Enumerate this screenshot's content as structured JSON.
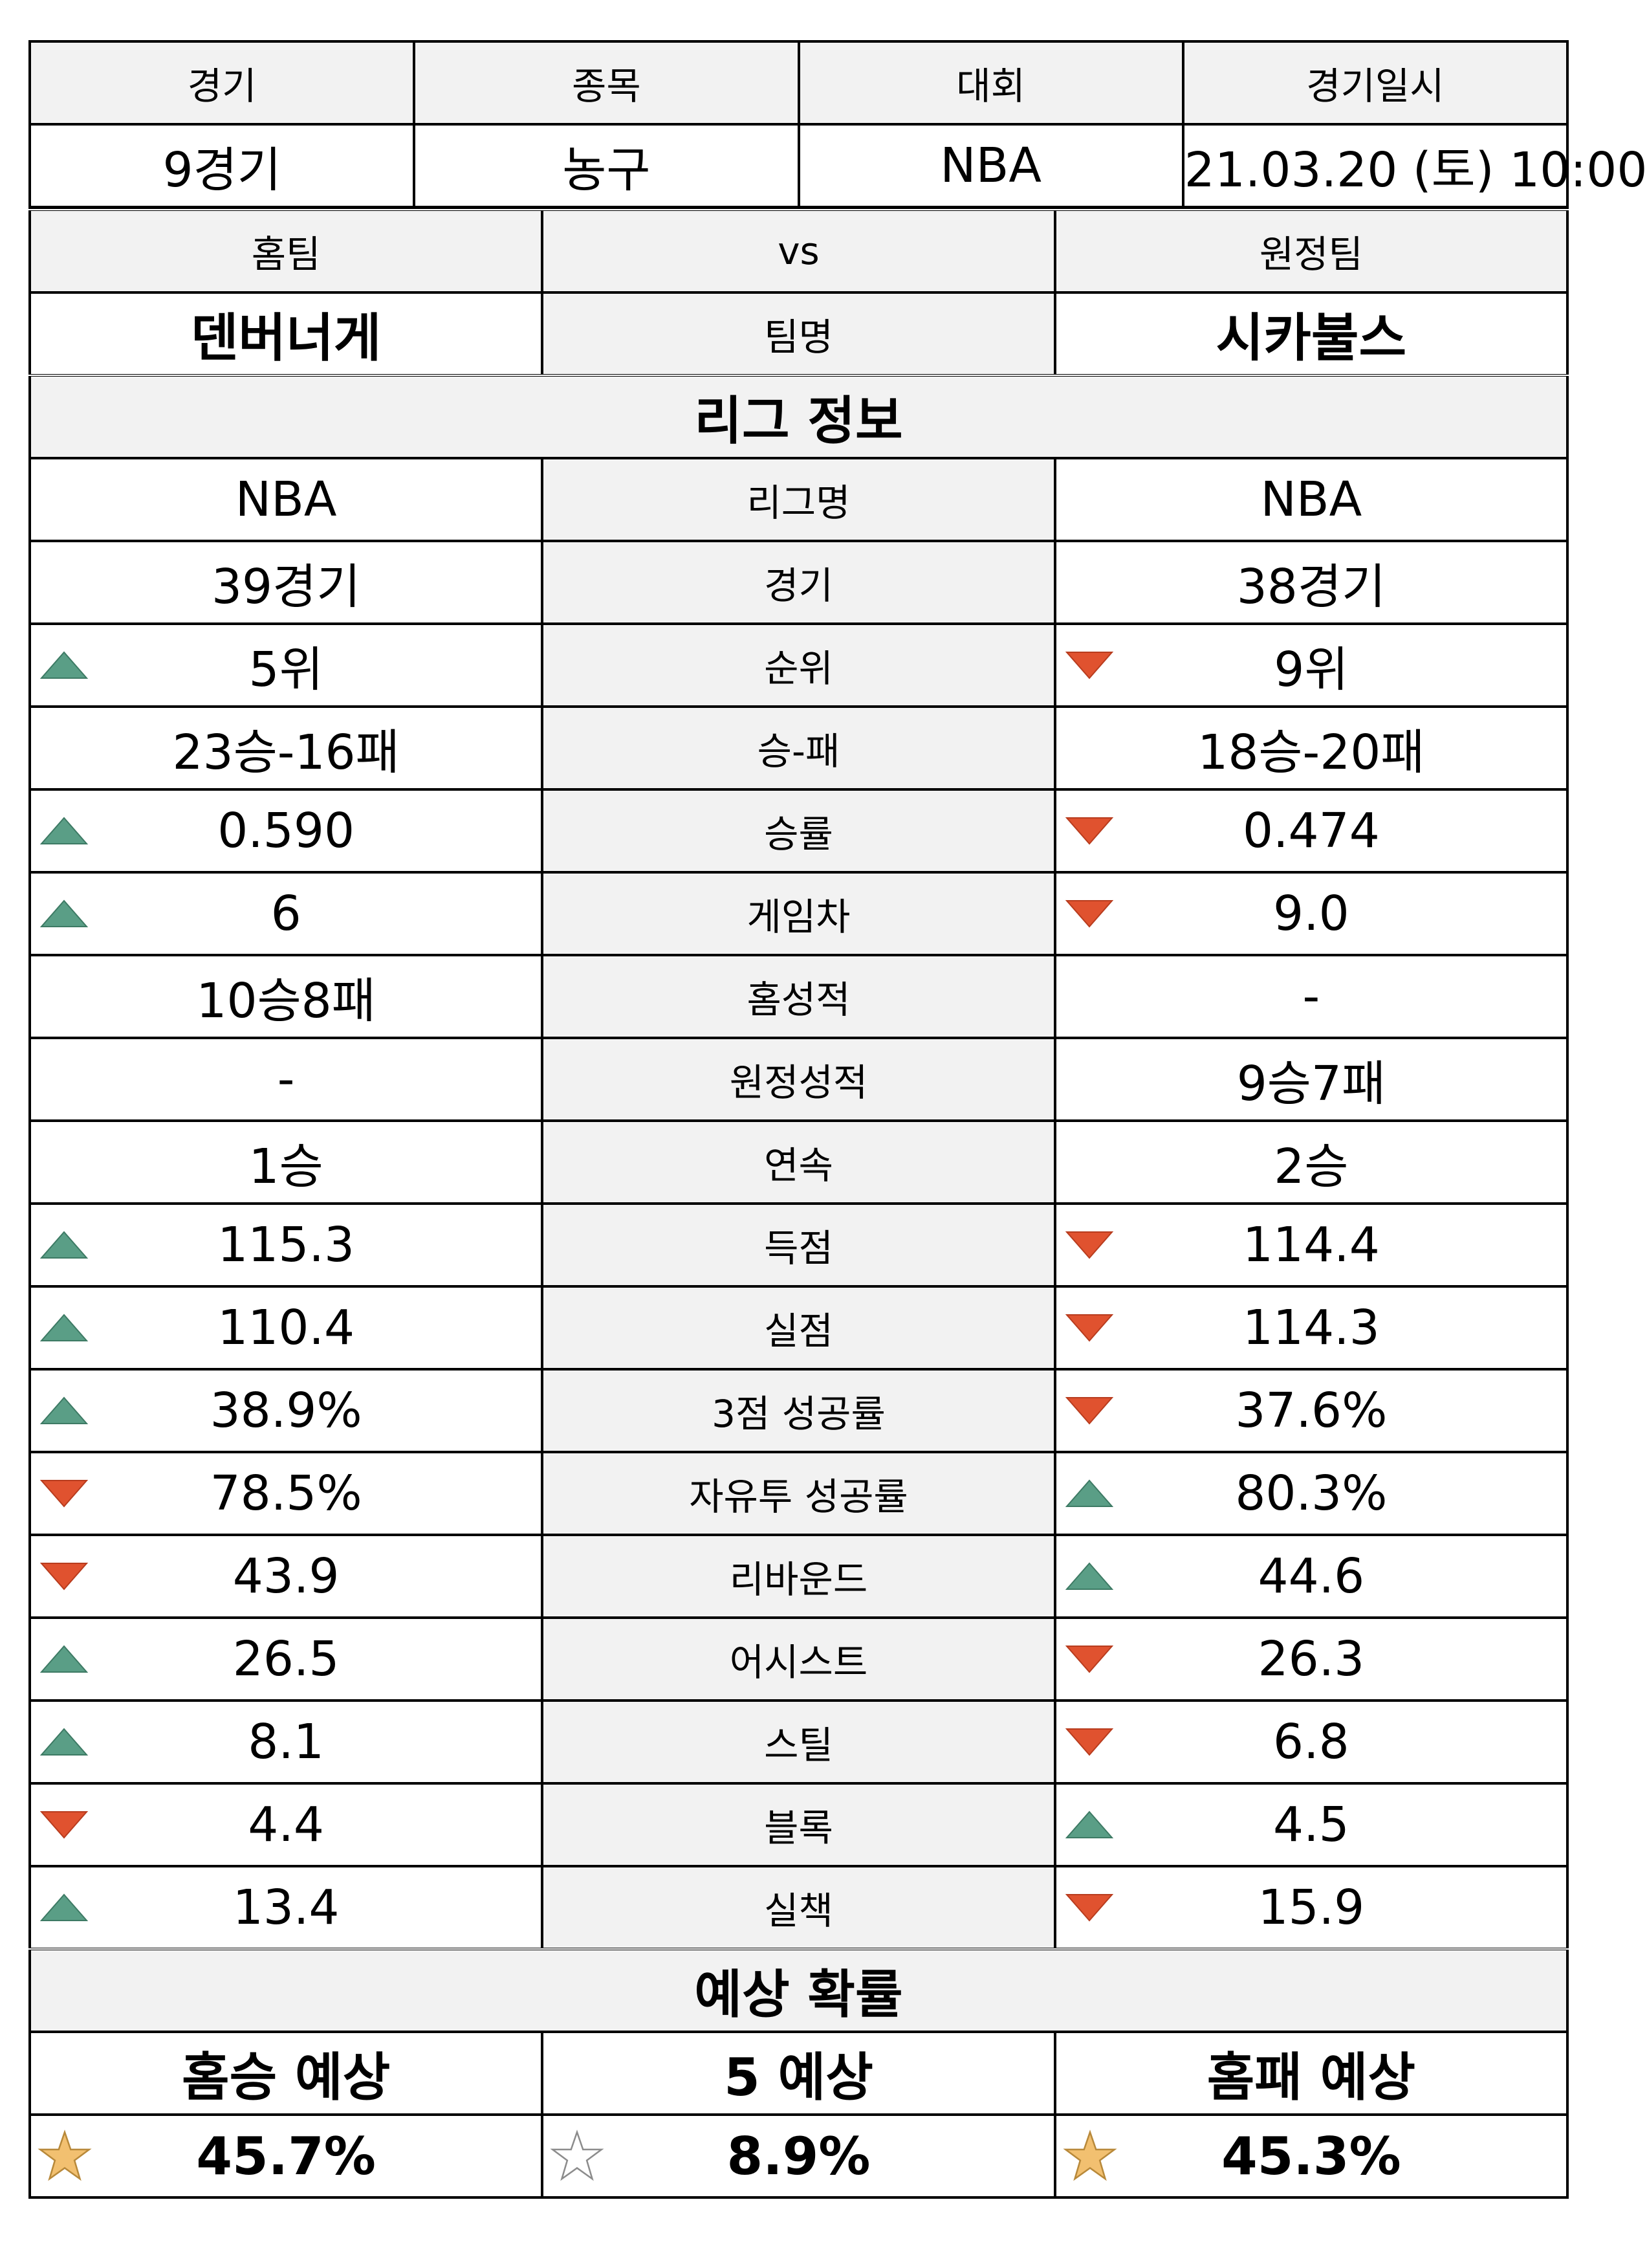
{
  "match": {
    "headers": [
      "경기",
      "종목",
      "대회",
      "경기일시"
    ],
    "values": [
      "9경기",
      "농구",
      "NBA",
      "21.03.20 (토) 10:00"
    ]
  },
  "teams": {
    "home_label": "홈팀",
    "vs_label": "vs",
    "away_label": "원정팀",
    "home_name": "덴버너게",
    "name_label": "팀명",
    "away_name": "시카불스"
  },
  "league": {
    "title": "리그 정보",
    "colors": {
      "up": "#5a9e86",
      "down": "#e0522f"
    },
    "rows": [
      {
        "label": "리그명",
        "home": "NBA",
        "away": "NBA",
        "home_ind": "none",
        "away_ind": "none"
      },
      {
        "label": "경기",
        "home": "39경기",
        "away": "38경기",
        "home_ind": "none",
        "away_ind": "none"
      },
      {
        "label": "순위",
        "home": "5위",
        "away": "9위",
        "home_ind": "up",
        "away_ind": "down"
      },
      {
        "label": "승-패",
        "home": "23승-16패",
        "away": "18승-20패",
        "home_ind": "none",
        "away_ind": "none"
      },
      {
        "label": "승률",
        "home": "0.590",
        "away": "0.474",
        "home_ind": "up",
        "away_ind": "down"
      },
      {
        "label": "게임차",
        "home": "6",
        "away": "9.0",
        "home_ind": "up",
        "away_ind": "down"
      },
      {
        "label": "홈성적",
        "home": "10승8패",
        "away": "-",
        "home_ind": "none",
        "away_ind": "none"
      },
      {
        "label": "원정성적",
        "home": "-",
        "away": "9승7패",
        "home_ind": "none",
        "away_ind": "none"
      },
      {
        "label": "연속",
        "home": "1승",
        "away": "2승",
        "home_ind": "none",
        "away_ind": "none"
      },
      {
        "label": "득점",
        "home": "115.3",
        "away": "114.4",
        "home_ind": "up",
        "away_ind": "down"
      },
      {
        "label": "실점",
        "home": "110.4",
        "away": "114.3",
        "home_ind": "up",
        "away_ind": "down"
      },
      {
        "label": "3점 성공률",
        "home": "38.9%",
        "away": "37.6%",
        "home_ind": "up",
        "away_ind": "down"
      },
      {
        "label": "자유투 성공률",
        "home": "78.5%",
        "away": "80.3%",
        "home_ind": "down",
        "away_ind": "up"
      },
      {
        "label": "리바운드",
        "home": "43.9",
        "away": "44.6",
        "home_ind": "down",
        "away_ind": "up"
      },
      {
        "label": "어시스트",
        "home": "26.5",
        "away": "26.3",
        "home_ind": "up",
        "away_ind": "down"
      },
      {
        "label": "스틸",
        "home": "8.1",
        "away": "6.8",
        "home_ind": "up",
        "away_ind": "down"
      },
      {
        "label": "블록",
        "home": "4.4",
        "away": "4.5",
        "home_ind": "down",
        "away_ind": "up"
      },
      {
        "label": "실책",
        "home": "13.4",
        "away": "15.9",
        "home_ind": "up",
        "away_ind": "down"
      }
    ]
  },
  "prediction": {
    "title": "예상 확률",
    "star_colors": {
      "filled": "#f2c070",
      "outline": "#8c8c8c"
    },
    "items": [
      {
        "label": "홈승 예상",
        "value": "45.7%",
        "star": "filled"
      },
      {
        "label": "5 예상",
        "value": "8.9%",
        "star": "empty"
      },
      {
        "label": "홈패 예상",
        "value": "45.3%",
        "star": "filled"
      }
    ]
  }
}
